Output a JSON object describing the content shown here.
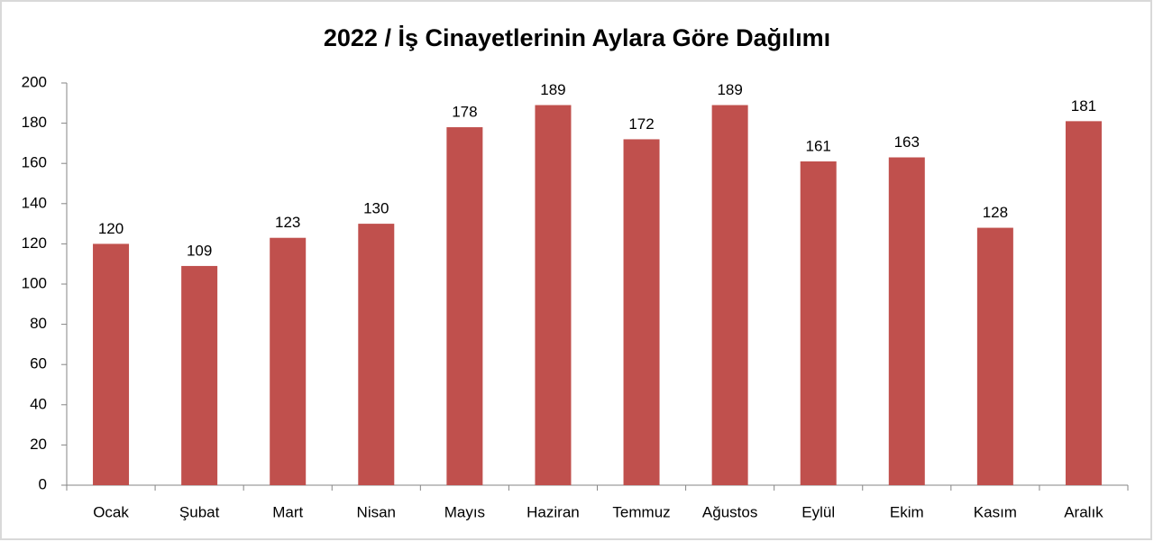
{
  "chart_data": {
    "type": "bar",
    "title": "2022 / İş Cinayetlerinin Aylara Göre Dağılımı",
    "categories": [
      "Ocak",
      "Şubat",
      "Mart",
      "Nisan",
      "Mayıs",
      "Haziran",
      "Temmuz",
      "Ağustos",
      "Eylül",
      "Ekim",
      "Kasım",
      "Aralık"
    ],
    "values": [
      120,
      109,
      123,
      130,
      178,
      189,
      172,
      189,
      161,
      163,
      128,
      181
    ],
    "color": "#c0504d",
    "ylim": [
      0,
      200
    ],
    "yticks": [
      0,
      20,
      40,
      60,
      80,
      100,
      120,
      140,
      160,
      180,
      200
    ],
    "grid": false
  }
}
